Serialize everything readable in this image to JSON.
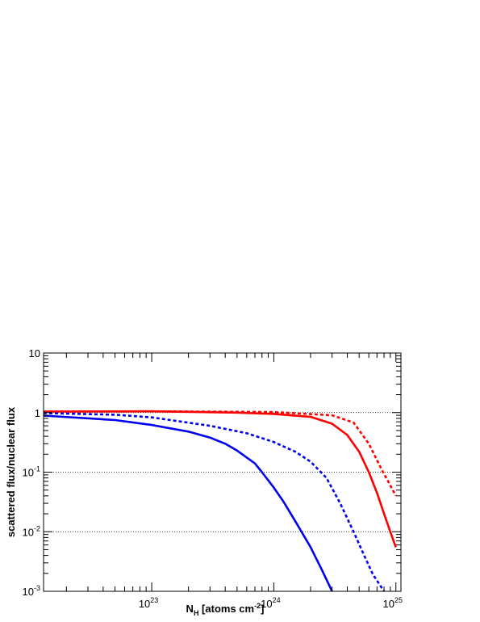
{
  "chart_data": {
    "type": "line",
    "title": "",
    "xlabel": {
      "base": "N",
      "sub": "H",
      "text": " [atoms cm",
      "sup": "-2",
      "end": "]"
    },
    "ylabel": "scattered flux/nuclear flux",
    "x_scale": "log",
    "y_scale": "log",
    "xlim": [
      1.3e+22,
      1.1e+25
    ],
    "ylim": [
      0.001,
      10
    ],
    "x_ticks": [
      {
        "value": 1e+23,
        "base": "10",
        "exp": "23"
      },
      {
        "value": 1e+24,
        "base": "10",
        "exp": "24"
      },
      {
        "value": 1e+25,
        "base": "10",
        "exp": "25"
      }
    ],
    "y_ticks": [
      {
        "value": 10,
        "base": "10",
        "exp": ""
      },
      {
        "value": 1,
        "base": "1",
        "exp": ""
      },
      {
        "value": 0.1,
        "base": "10",
        "exp": "-1"
      },
      {
        "value": 0.01,
        "base": "10",
        "exp": "-2"
      },
      {
        "value": 0.001,
        "base": "10",
        "exp": "-3"
      }
    ],
    "grid": {
      "horizontal_dotted_at": [
        1,
        0.1,
        0.01
      ]
    },
    "colors": {
      "red": "#ff0000",
      "blue": "#0000ee",
      "grid": "#000000"
    },
    "series": [
      {
        "color": "#ff0000",
        "dash": "dotted",
        "x": [
          1.3e+22,
          1e+23,
          1e+24,
          3e+24,
          4.5e+24,
          6e+24,
          7.5e+24,
          9e+24,
          1e+25
        ],
        "y": [
          1.04,
          1.05,
          1.02,
          0.9,
          0.68,
          0.3,
          0.12,
          0.06,
          0.04
        ]
      },
      {
        "color": "#ff0000",
        "dash": "solid",
        "x": [
          1.3e+22,
          1e+23,
          5e+23,
          1e+24,
          2e+24,
          3e+24,
          4e+24,
          5e+24,
          6e+24,
          7e+24,
          8e+24,
          9e+24,
          1e+25
        ],
        "y": [
          1.04,
          1.05,
          1.0,
          0.95,
          0.85,
          0.65,
          0.42,
          0.22,
          0.1,
          0.045,
          0.02,
          0.01,
          0.0055
        ]
      },
      {
        "color": "#0000ee",
        "dash": "dotted",
        "x": [
          1.3e+22,
          5e+22,
          1e+23,
          3e+23,
          6e+23,
          1e+24,
          1.5e+24,
          2e+24,
          2.7e+24,
          3.5e+24,
          4.5e+24,
          5.5e+24,
          6.5e+24,
          8e+24
        ],
        "y": [
          0.98,
          0.92,
          0.83,
          0.6,
          0.45,
          0.32,
          0.22,
          0.15,
          0.08,
          0.03,
          0.01,
          0.004,
          0.0019,
          0.001
        ]
      },
      {
        "color": "#0000ee",
        "dash": "solid",
        "x": [
          1.3e+22,
          5e+22,
          1e+23,
          2e+23,
          3e+23,
          4e+23,
          5e+23,
          7e+23,
          8e+23,
          1e+24,
          1.2e+24,
          1.5e+24,
          2e+24,
          2.5e+24,
          3e+24
        ],
        "y": [
          0.89,
          0.75,
          0.62,
          0.48,
          0.38,
          0.3,
          0.23,
          0.14,
          0.1,
          0.055,
          0.032,
          0.015,
          0.0055,
          0.0022,
          0.001
        ]
      }
    ]
  }
}
